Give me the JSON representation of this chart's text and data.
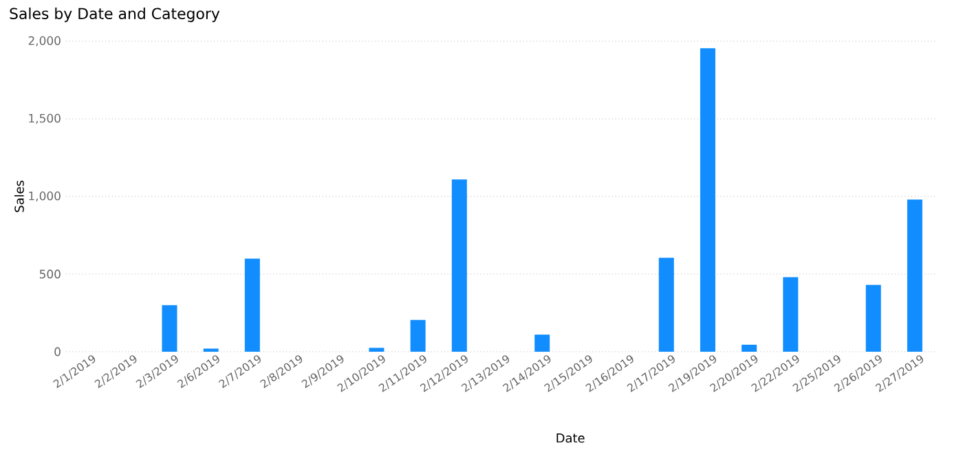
{
  "chart_data": {
    "type": "bar",
    "title": "Sales by Date and Category",
    "xlabel": "Date",
    "ylabel": "Sales",
    "categories": [
      "2/1/2019",
      "2/2/2019",
      "2/3/2019",
      "2/6/2019",
      "2/7/2019",
      "2/8/2019",
      "2/9/2019",
      "2/10/2019",
      "2/11/2019",
      "2/12/2019",
      "2/13/2019",
      "2/14/2019",
      "2/15/2019",
      "2/16/2019",
      "2/17/2019",
      "2/19/2019",
      "2/20/2019",
      "2/22/2019",
      "2/25/2019",
      "2/26/2019",
      "2/27/2019"
    ],
    "values": [
      null,
      null,
      300,
      20,
      600,
      null,
      null,
      25,
      205,
      1110,
      null,
      110,
      null,
      null,
      605,
      1955,
      45,
      480,
      null,
      430,
      980
    ],
    "color": "#118dff",
    "ylim": [
      0,
      2000
    ],
    "yticks": [
      {
        "value": 0,
        "label": "0"
      },
      {
        "value": 500,
        "label": "500"
      },
      {
        "value": 1000,
        "label": "1,000"
      },
      {
        "value": 1500,
        "label": "1,500"
      },
      {
        "value": 2000,
        "label": "2,000"
      }
    ],
    "grid": "y"
  }
}
